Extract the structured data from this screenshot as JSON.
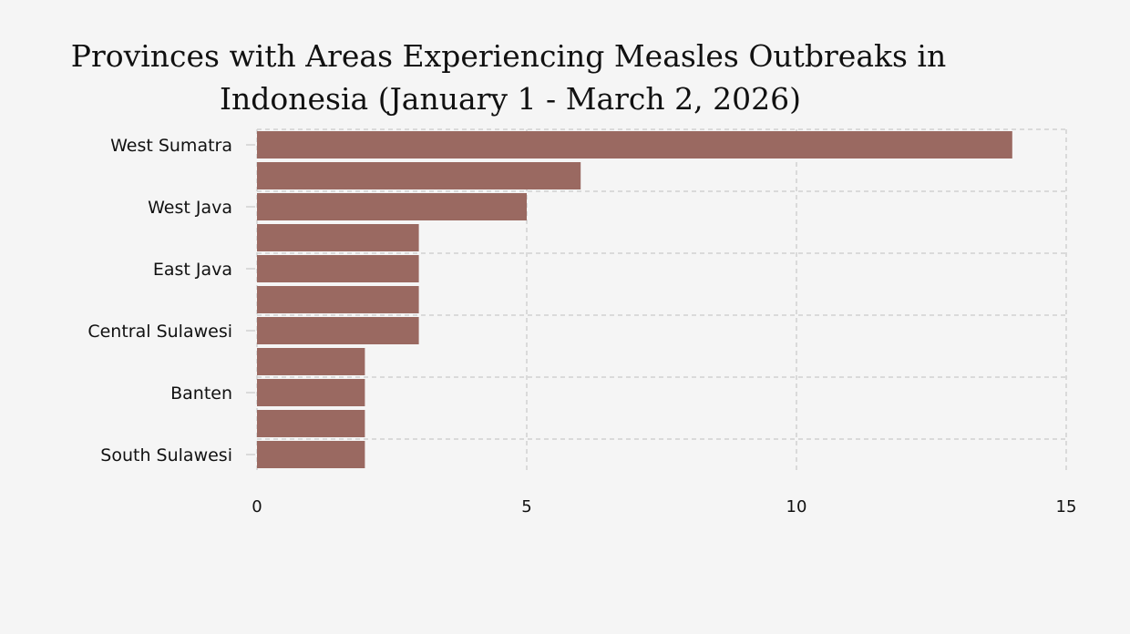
{
  "chart_data": {
    "type": "bar",
    "orientation": "horizontal",
    "title_lines": [
      "Provinces with Areas Experiencing Measles Outbreaks in",
      "Indonesia (January 1 - March 2, 2026)"
    ],
    "categories": [
      "West Sumatra",
      "",
      "West Java",
      "",
      "East Java",
      "",
      "Central Sulawesi",
      "",
      "Banten",
      "",
      "South Sulawesi"
    ],
    "values": [
      14,
      6,
      5,
      3,
      3,
      3,
      3,
      2,
      2,
      2,
      2
    ],
    "xlim": [
      0,
      15
    ],
    "xticks": [
      0,
      5,
      10,
      15
    ],
    "xlabel": "",
    "ylabel": "",
    "grid": true,
    "legend": "none",
    "bar_color": "#9a6961"
  }
}
